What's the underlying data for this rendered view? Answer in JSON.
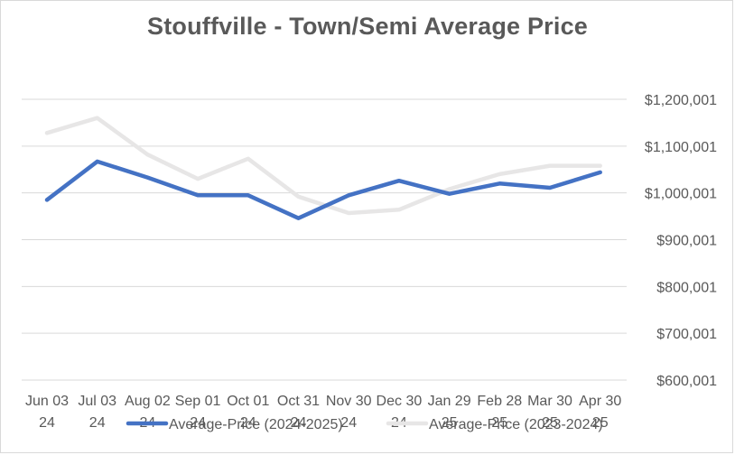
{
  "chart_data": {
    "type": "line",
    "title": "Stouffville - Town/Semi Average Price",
    "xlabel": "",
    "ylabel": "",
    "categories": [
      [
        "Jun 03",
        "24"
      ],
      [
        "Jul 03",
        "24"
      ],
      [
        "Aug 02",
        "24"
      ],
      [
        "Sep 01",
        "24"
      ],
      [
        "Oct 01",
        "24"
      ],
      [
        "Oct 31",
        "24"
      ],
      [
        "Nov 30",
        "24"
      ],
      [
        "Dec 30",
        "24"
      ],
      [
        "Jan 29",
        "25"
      ],
      [
        "Feb 28",
        "25"
      ],
      [
        "Mar 30",
        "25"
      ],
      [
        "Apr 30",
        "25"
      ]
    ],
    "y_ticks": [
      "$600,001",
      "$700,001",
      "$800,001",
      "$900,001",
      "$1,000,001",
      "$1,100,001",
      "$1,200,001"
    ],
    "ylim": [
      600001,
      1200001
    ],
    "y_axis_side": "right",
    "grid": true,
    "legend_position": "bottom",
    "series": [
      {
        "name": "Average-Price (2024-2025)",
        "color": "#4472C4",
        "values": [
          985000,
          1067000,
          1033000,
          995000,
          995000,
          946000,
          995000,
          1026000,
          998000,
          1020000,
          1011000,
          1044000
        ]
      },
      {
        "name": "Average-Price (2023-2024)",
        "color": "#E7E6E6",
        "values": [
          1128000,
          1160000,
          1082000,
          1030000,
          1073000,
          992000,
          957000,
          964000,
          1008000,
          1040000,
          1058000,
          1058000
        ]
      }
    ]
  }
}
